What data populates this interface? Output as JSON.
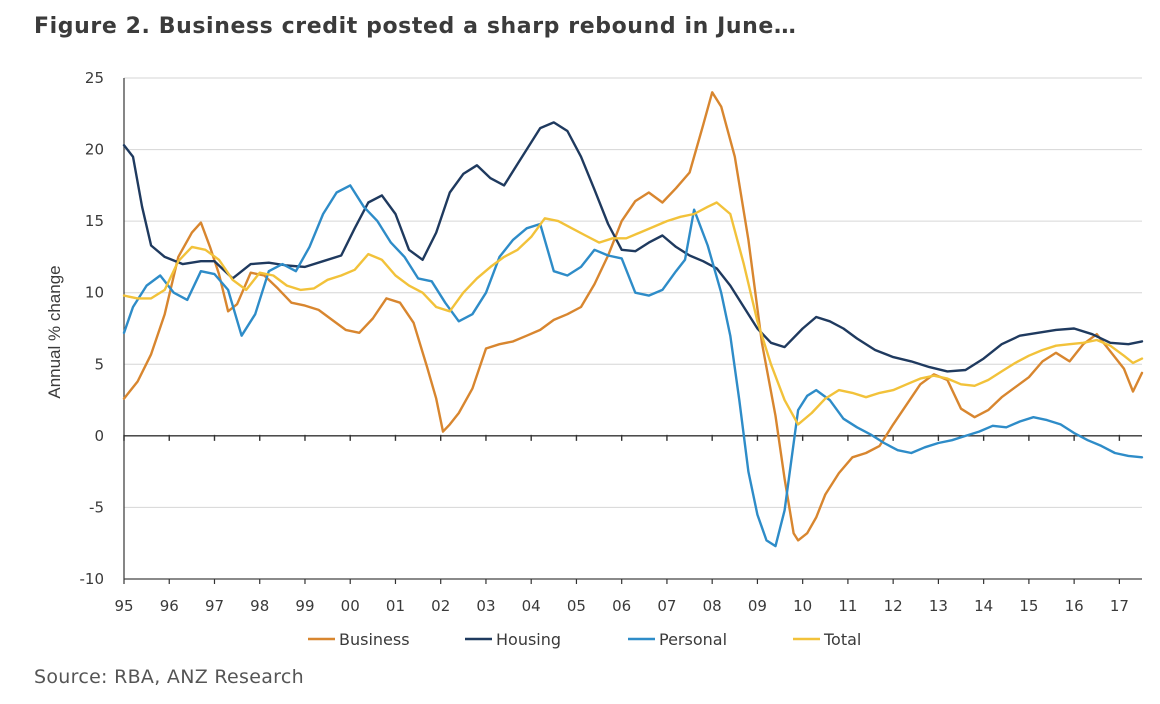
{
  "title": "Figure 2. Business credit posted a sharp rebound in June…",
  "source": "Source: RBA, ANZ Research",
  "chart_data": {
    "type": "line",
    "title": "Figure 2. Business credit posted a sharp rebound in June…",
    "xlabel": "",
    "ylabel": "Annual % change",
    "xlim": [
      1995,
      2017.5
    ],
    "ylim": [
      -10,
      25
    ],
    "yticks": [
      25,
      20,
      15,
      10,
      5,
      0,
      -5,
      -10
    ],
    "xtick_labels": [
      "95",
      "96",
      "97",
      "98",
      "99",
      "00",
      "01",
      "02",
      "03",
      "04",
      "05",
      "06",
      "07",
      "08",
      "09",
      "10",
      "11",
      "12",
      "13",
      "14",
      "15",
      "16",
      "17"
    ],
    "grid": "horizontal",
    "legend": "bottom",
    "series": [
      {
        "name": "Business",
        "color": "#d8862f",
        "x": [
          1995.0,
          1995.3,
          1995.6,
          1995.9,
          1996.2,
          1996.5,
          1996.7,
          1996.9,
          1997.1,
          1997.3,
          1997.5,
          1997.8,
          1998.1,
          1998.4,
          1998.7,
          1999.0,
          1999.3,
          1999.6,
          1999.9,
          2000.2,
          2000.5,
          2000.8,
          2001.1,
          2001.4,
          2001.7,
          2001.9,
          2002.05,
          2002.2,
          2002.4,
          2002.7,
          2003.0,
          2003.3,
          2003.6,
          2003.9,
          2004.2,
          2004.5,
          2004.8,
          2005.1,
          2005.4,
          2005.7,
          2006.0,
          2006.3,
          2006.6,
          2006.9,
          2007.2,
          2007.5,
          2007.8,
          2008.0,
          2008.2,
          2008.5,
          2008.8,
          2009.1,
          2009.4,
          2009.6,
          2009.8,
          2009.9,
          2010.1,
          2010.3,
          2010.5,
          2010.8,
          2011.1,
          2011.4,
          2011.7,
          2012.0,
          2012.3,
          2012.6,
          2012.9,
          2013.2,
          2013.5,
          2013.8,
          2014.1,
          2014.4,
          2014.7,
          2015.0,
          2015.3,
          2015.6,
          2015.9,
          2016.2,
          2016.5,
          2016.8,
          2017.1,
          2017.3,
          2017.5
        ],
        "values": [
          2.6,
          3.8,
          5.7,
          8.5,
          12.5,
          14.2,
          14.9,
          13.2,
          11.3,
          8.7,
          9.2,
          11.4,
          11.2,
          10.3,
          9.3,
          9.1,
          8.8,
          8.1,
          7.4,
          7.2,
          8.2,
          9.6,
          9.3,
          7.9,
          4.8,
          2.6,
          0.3,
          0.8,
          1.6,
          3.3,
          6.1,
          6.4,
          6.6,
          7.0,
          7.4,
          8.1,
          8.5,
          9.0,
          10.6,
          12.6,
          15.0,
          16.4,
          17.0,
          16.3,
          17.3,
          18.4,
          21.7,
          24.0,
          23.0,
          19.5,
          13.7,
          6.5,
          1.4,
          -3.0,
          -6.8,
          -7.3,
          -6.8,
          -5.7,
          -4.1,
          -2.6,
          -1.5,
          -1.2,
          -0.7,
          0.8,
          2.2,
          3.6,
          4.3,
          3.9,
          1.9,
          1.3,
          1.8,
          2.7,
          3.4,
          4.1,
          5.2,
          5.8,
          5.2,
          6.4,
          7.1,
          5.9,
          4.7,
          3.1,
          4.4
        ]
      },
      {
        "name": "Housing",
        "color": "#1f3a5f",
        "x": [
          1995.0,
          1995.2,
          1995.4,
          1995.6,
          1995.9,
          1996.3,
          1996.7,
          1997.0,
          1997.4,
          1997.8,
          1998.2,
          1998.6,
          1999.0,
          1999.4,
          1999.8,
          2000.1,
          2000.4,
          2000.7,
          2001.0,
          2001.3,
          2001.6,
          2001.9,
          2002.2,
          2002.5,
          2002.8,
          2003.1,
          2003.4,
          2003.7,
          2004.0,
          2004.2,
          2004.5,
          2004.8,
          2005.1,
          2005.4,
          2005.7,
          2006.0,
          2006.3,
          2006.6,
          2006.9,
          2007.2,
          2007.5,
          2007.8,
          2008.1,
          2008.4,
          2008.7,
          2009.0,
          2009.3,
          2009.6,
          2010.0,
          2010.3,
          2010.6,
          2010.9,
          2011.2,
          2011.6,
          2012.0,
          2012.4,
          2012.8,
          2013.2,
          2013.6,
          2014.0,
          2014.4,
          2014.8,
          2015.2,
          2015.6,
          2016.0,
          2016.4,
          2016.8,
          2017.2,
          2017.5
        ],
        "values": [
          20.3,
          19.5,
          16.0,
          13.3,
          12.5,
          12.0,
          12.2,
          12.2,
          11.0,
          12.0,
          12.1,
          11.9,
          11.8,
          12.2,
          12.6,
          14.5,
          16.3,
          16.8,
          15.5,
          13.0,
          12.3,
          14.2,
          17.0,
          18.3,
          18.9,
          18.0,
          17.5,
          19.0,
          20.5,
          21.5,
          21.9,
          21.3,
          19.5,
          17.2,
          14.8,
          13.0,
          12.9,
          13.5,
          14.0,
          13.2,
          12.6,
          12.2,
          11.7,
          10.5,
          9.0,
          7.5,
          6.5,
          6.2,
          7.5,
          8.3,
          8.0,
          7.5,
          6.8,
          6.0,
          5.5,
          5.2,
          4.8,
          4.5,
          4.6,
          5.4,
          6.4,
          7.0,
          7.2,
          7.4,
          7.5,
          7.1,
          6.5,
          6.4,
          6.6
        ]
      },
      {
        "name": "Personal",
        "color": "#2e8cc8",
        "x": [
          1995.0,
          1995.2,
          1995.5,
          1995.8,
          1996.1,
          1996.4,
          1996.7,
          1997.0,
          1997.3,
          1997.6,
          1997.9,
          1998.2,
          1998.5,
          1998.8,
          1999.1,
          1999.4,
          1999.7,
          2000.0,
          2000.3,
          2000.6,
          2000.9,
          2001.2,
          2001.5,
          2001.8,
          2002.1,
          2002.4,
          2002.7,
          2003.0,
          2003.3,
          2003.6,
          2003.9,
          2004.2,
          2004.5,
          2004.8,
          2005.1,
          2005.4,
          2005.7,
          2006.0,
          2006.3,
          2006.6,
          2006.9,
          2007.2,
          2007.4,
          2007.6,
          2007.9,
          2008.2,
          2008.4,
          2008.6,
          2008.8,
          2009.0,
          2009.2,
          2009.4,
          2009.6,
          2009.9,
          2010.1,
          2010.3,
          2010.6,
          2010.9,
          2011.2,
          2011.5,
          2011.8,
          2012.1,
          2012.4,
          2012.7,
          2013.0,
          2013.3,
          2013.6,
          2013.9,
          2014.2,
          2014.5,
          2014.8,
          2015.1,
          2015.4,
          2015.7,
          2016.0,
          2016.3,
          2016.6,
          2016.9,
          2017.2,
          2017.5
        ],
        "values": [
          7.2,
          9.0,
          10.5,
          11.2,
          10.0,
          9.5,
          11.5,
          11.3,
          10.2,
          7.0,
          8.5,
          11.5,
          12.0,
          11.5,
          13.2,
          15.5,
          17.0,
          17.5,
          16.0,
          15.0,
          13.5,
          12.5,
          11.0,
          10.8,
          9.3,
          8.0,
          8.5,
          10.0,
          12.5,
          13.7,
          14.5,
          14.8,
          11.5,
          11.2,
          11.8,
          13.0,
          12.6,
          12.4,
          10.0,
          9.8,
          10.2,
          11.5,
          12.3,
          15.8,
          13.3,
          10.0,
          7.0,
          2.5,
          -2.5,
          -5.5,
          -7.3,
          -7.7,
          -5.2,
          1.8,
          2.8,
          3.2,
          2.5,
          1.2,
          0.6,
          0.1,
          -0.5,
          -1.0,
          -1.2,
          -0.8,
          -0.5,
          -0.3,
          0.0,
          0.3,
          0.7,
          0.6,
          1.0,
          1.3,
          1.1,
          0.8,
          0.2,
          -0.3,
          -0.7,
          -1.2,
          -1.4,
          -1.5
        ]
      },
      {
        "name": "Total",
        "color": "#f2c23a",
        "x": [
          1995.0,
          1995.3,
          1995.6,
          1995.9,
          1996.2,
          1996.5,
          1996.8,
          1997.1,
          1997.4,
          1997.7,
          1998.0,
          1998.3,
          1998.6,
          1998.9,
          1999.2,
          1999.5,
          1999.8,
          2000.1,
          2000.4,
          2000.7,
          2001.0,
          2001.3,
          2001.6,
          2001.9,
          2002.2,
          2002.5,
          2002.8,
          2003.1,
          2003.4,
          2003.7,
          2004.0,
          2004.3,
          2004.6,
          2004.9,
          2005.2,
          2005.5,
          2005.8,
          2006.1,
          2006.4,
          2006.7,
          2007.0,
          2007.3,
          2007.6,
          2007.9,
          2008.1,
          2008.4,
          2008.7,
          2009.0,
          2009.3,
          2009.6,
          2009.9,
          2010.2,
          2010.5,
          2010.8,
          2011.1,
          2011.4,
          2011.7,
          2012.0,
          2012.3,
          2012.6,
          2012.9,
          2013.2,
          2013.5,
          2013.8,
          2014.1,
          2014.4,
          2014.7,
          2015.0,
          2015.3,
          2015.6,
          2015.9,
          2016.2,
          2016.5,
          2016.8,
          2017.1,
          2017.3,
          2017.5
        ],
        "values": [
          9.8,
          9.6,
          9.6,
          10.2,
          12.2,
          13.2,
          13.0,
          12.3,
          10.9,
          10.2,
          11.4,
          11.2,
          10.5,
          10.2,
          10.3,
          10.9,
          11.2,
          11.6,
          12.7,
          12.3,
          11.2,
          10.5,
          10.0,
          9.0,
          8.7,
          10.0,
          11.0,
          11.8,
          12.5,
          13.0,
          13.9,
          15.2,
          15.0,
          14.5,
          14.0,
          13.5,
          13.8,
          13.8,
          14.2,
          14.6,
          15.0,
          15.3,
          15.5,
          16.0,
          16.3,
          15.5,
          12.0,
          8.0,
          5.0,
          2.5,
          0.8,
          1.6,
          2.6,
          3.2,
          3.0,
          2.7,
          3.0,
          3.2,
          3.6,
          4.0,
          4.2,
          4.0,
          3.6,
          3.5,
          3.9,
          4.5,
          5.1,
          5.6,
          6.0,
          6.3,
          6.4,
          6.5,
          6.7,
          6.3,
          5.6,
          5.1,
          5.4
        ]
      }
    ]
  }
}
